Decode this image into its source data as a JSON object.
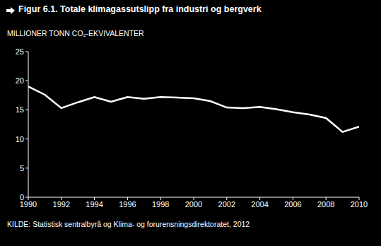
{
  "chart_data": {
    "type": "line",
    "title": "Figur 6.1. Totale klimagassutslipp fra industri og bergverk",
    "y_label": "MILLIONER TONN CO₂-EKVIVALENTER",
    "source": "KILDE: Statistisk sentralbyrå og Klima- og forurensningsdirektoratet, 2012",
    "x": [
      1990,
      1991,
      1992,
      1993,
      1994,
      1995,
      1996,
      1997,
      1998,
      1999,
      2000,
      2001,
      2002,
      2003,
      2004,
      2005,
      2006,
      2007,
      2008,
      2009,
      2010
    ],
    "values": [
      19.0,
      17.6,
      15.3,
      16.3,
      17.2,
      16.4,
      17.2,
      16.9,
      17.2,
      17.1,
      17.0,
      16.5,
      15.4,
      15.3,
      15.5,
      15.1,
      14.6,
      14.2,
      13.6,
      11.2,
      12.1
    ],
    "color": "#ffffff",
    "xlim": [
      1990,
      2010
    ],
    "xticks": [
      1990,
      1992,
      1994,
      1996,
      1998,
      2000,
      2002,
      2004,
      2006,
      2008,
      2010
    ],
    "ylim": [
      0,
      25
    ],
    "yticks": [
      0,
      5,
      10,
      15,
      20,
      25
    ],
    "grid": false
  }
}
